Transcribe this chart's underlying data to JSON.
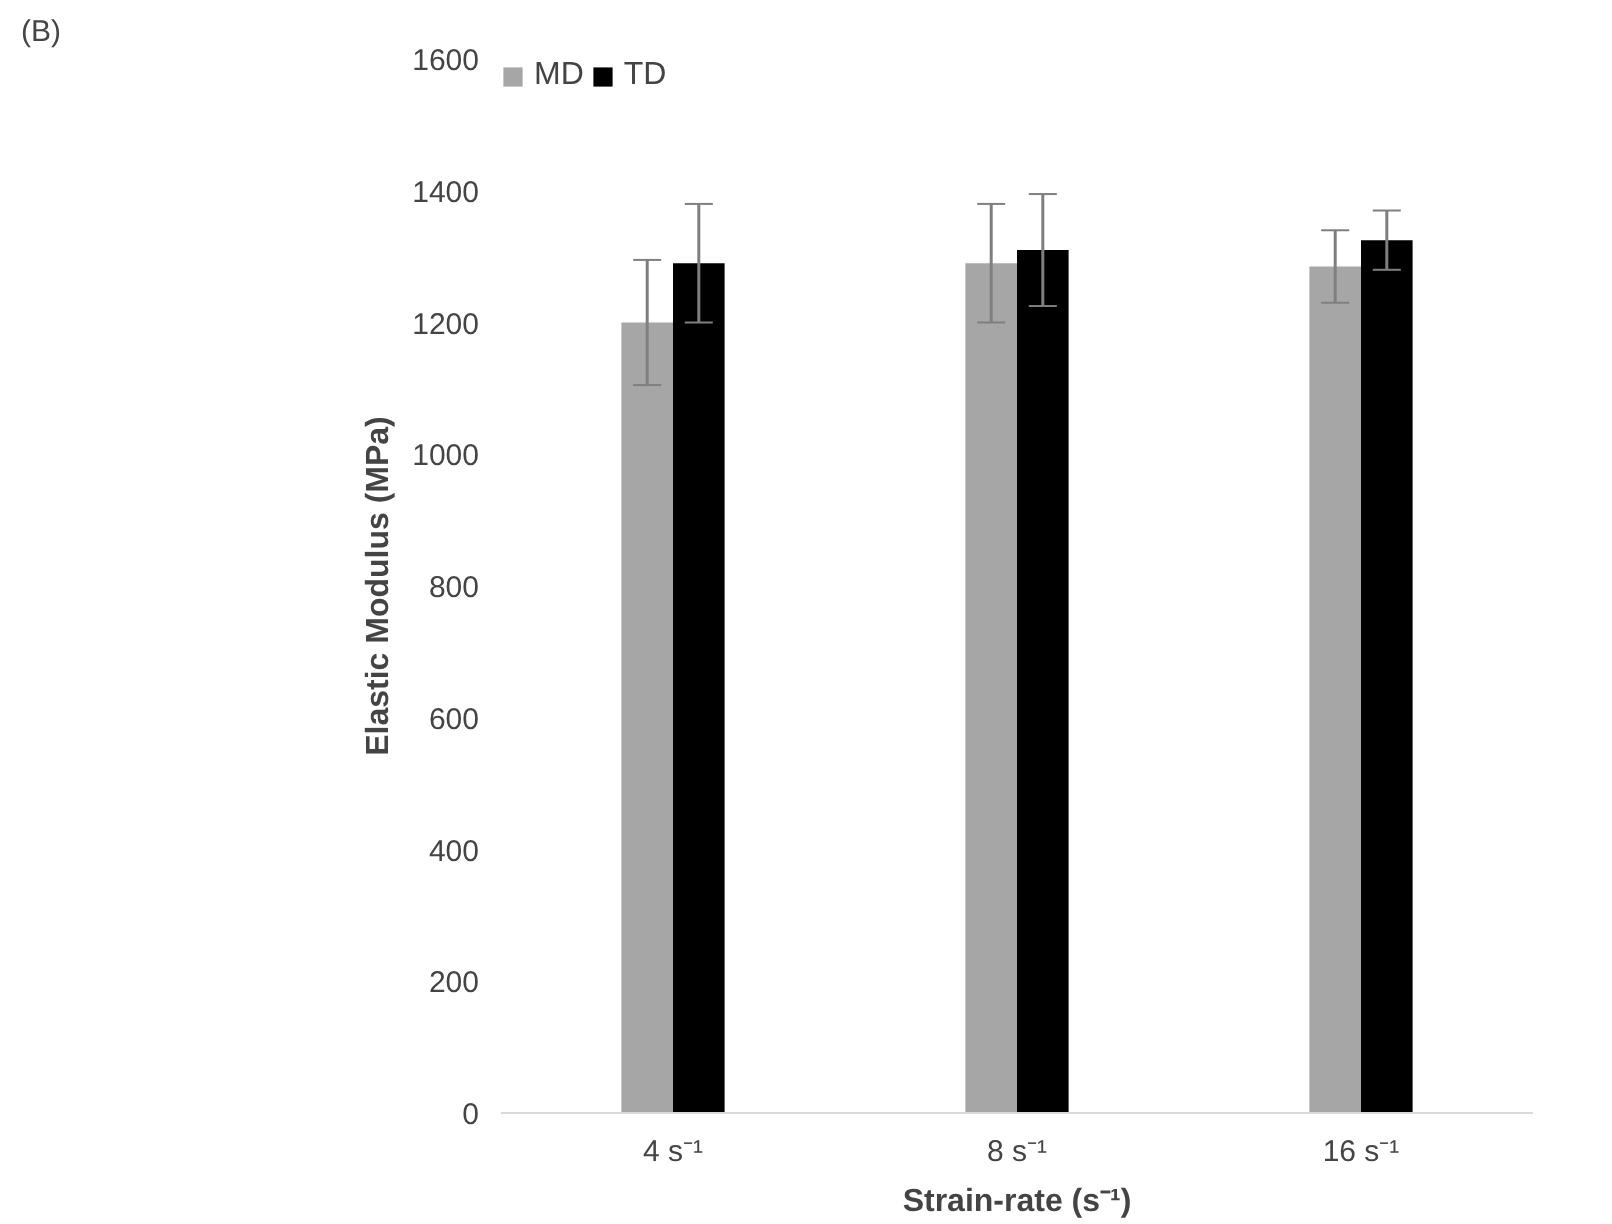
{
  "chart_data": {
    "type": "bar",
    "title": "(B)",
    "xlabel": "Strain-rate (s⁻¹)",
    "ylabel": "Elastic Modulus (MPa)",
    "categories": [
      "4 s⁻¹",
      "8 s⁻¹",
      "16 s⁻¹"
    ],
    "series": [
      {
        "name": "MD",
        "color": "#a6a6a6",
        "values": [
          1200,
          1290,
          1285
        ],
        "errors": [
          95,
          90,
          55
        ]
      },
      {
        "name": "TD",
        "color": "#000000",
        "values": [
          1290,
          1310,
          1325
        ],
        "errors": [
          90,
          85,
          45
        ]
      }
    ],
    "ylim": [
      0,
      1600
    ],
    "yticks": [
      0,
      200,
      400,
      600,
      800,
      1000,
      1200,
      1400,
      1600
    ],
    "grid": false,
    "legend": "top left"
  }
}
